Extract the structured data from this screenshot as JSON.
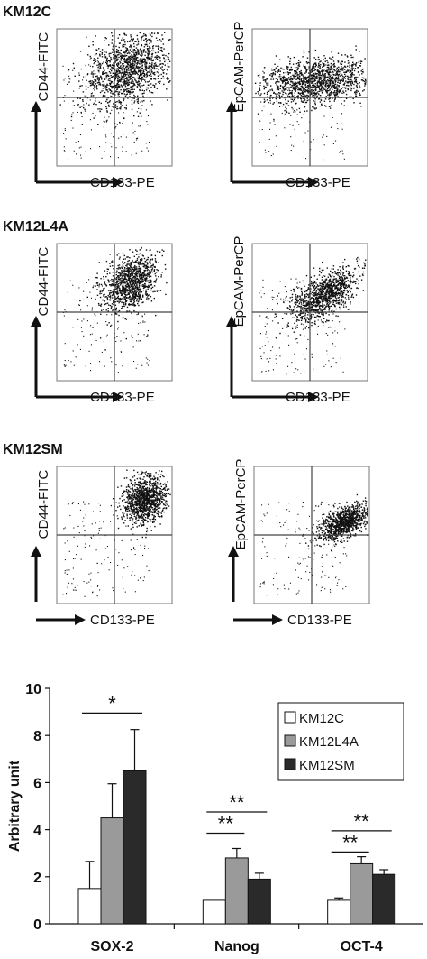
{
  "chart_data": [
    {
      "type": "scatter",
      "title": "KM12C",
      "xlabel": "CD133-PE",
      "ylabel": "CD44-FITC",
      "scale": "log",
      "xlim": [
        1,
        10000
      ],
      "ylim": [
        1,
        10000
      ],
      "gates": {
        "x": 100,
        "y": 100
      }
    },
    {
      "type": "scatter",
      "title": "",
      "xlabel": "CD133-PE",
      "ylabel": "EpCAM-PerCP",
      "scale": "log",
      "xlim": [
        1,
        10000
      ],
      "ylim": [
        1,
        10000
      ],
      "gates": {
        "x": 100,
        "y": 100
      }
    },
    {
      "type": "scatter",
      "title": "KM12L4A",
      "xlabel": "CD133-PE",
      "ylabel": "CD44-FITC",
      "scale": "log",
      "xlim": [
        1,
        10000
      ],
      "ylim": [
        1,
        10000
      ],
      "gates": {
        "x": 100,
        "y": 100
      }
    },
    {
      "type": "scatter",
      "title": "",
      "xlabel": "CD133-PE",
      "ylabel": "EpCAM-PerCP",
      "scale": "log",
      "xlim": [
        1,
        10000
      ],
      "ylim": [
        1,
        10000
      ],
      "gates": {
        "x": 100,
        "y": 100
      }
    },
    {
      "type": "scatter",
      "title": "KM12SM",
      "xlabel": "CD133-PE",
      "ylabel": "CD44-FITC",
      "scale": "log",
      "xlim": [
        1,
        10000
      ],
      "ylim": [
        1,
        10000
      ],
      "gates": {
        "x": 100,
        "y": 100
      }
    },
    {
      "type": "scatter",
      "title": "",
      "xlabel": "CD133-PE",
      "ylabel": "EpCAM-PerCP",
      "scale": "log",
      "xlim": [
        1,
        10000
      ],
      "ylim": [
        1,
        10000
      ],
      "gates": {
        "x": 100,
        "y": 100
      }
    },
    {
      "type": "bar",
      "title": "",
      "xlabel": "",
      "ylabel": "Arbitrary unit",
      "ylim": [
        0,
        10
      ],
      "yticks": [
        0,
        2,
        4,
        6,
        8,
        10
      ],
      "categories": [
        "SOX-2",
        "Nanog",
        "OCT-4"
      ],
      "series": [
        {
          "name": "KM12C",
          "color": "#ffffff",
          "values": [
            1.5,
            1.0,
            1.0
          ],
          "errors": [
            1.15,
            0.0,
            0.1
          ]
        },
        {
          "name": "KM12L4A",
          "color": "#9a9a9a",
          "values": [
            4.5,
            2.8,
            2.55
          ],
          "errors": [
            1.45,
            0.4,
            0.3
          ]
        },
        {
          "name": "KM12SM",
          "color": "#2a2a2a",
          "values": [
            6.5,
            1.9,
            2.1
          ],
          "errors": [
            1.75,
            0.25,
            0.2
          ]
        }
      ],
      "legend": "top-right",
      "annotations": [
        {
          "text": "*",
          "category": "SOX-2",
          "from": "KM12C",
          "to": "KM12SM"
        },
        {
          "text": "**",
          "category": "Nanog",
          "from": "KM12C",
          "to": "KM12SM"
        },
        {
          "text": "**",
          "category": "Nanog",
          "from": "KM12C",
          "to": "KM12L4A"
        },
        {
          "text": "**",
          "category": "OCT-4",
          "from": "KM12C",
          "to": "KM12SM"
        },
        {
          "text": "**",
          "category": "OCT-4",
          "from": "KM12C",
          "to": "KM12L4A"
        }
      ]
    }
  ]
}
